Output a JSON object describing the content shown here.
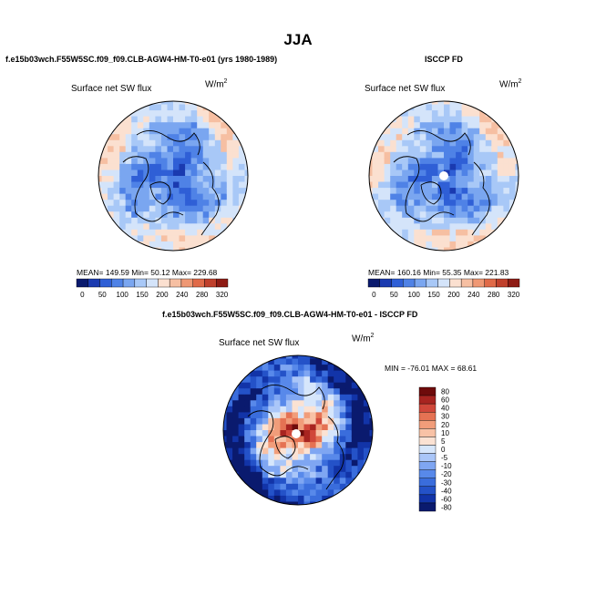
{
  "season_title": "JJA",
  "panels": {
    "model": {
      "header": "f.e15b03wch.F55W5SC.f09_f09.CLB-AGW4-HM-T0-e01 (yrs 1980-1989)",
      "field_label": "Surface net SW flux",
      "units_base": "W/m",
      "units_exp": "2",
      "stats": "MEAN= 149.59   Min=   50.12   Max= 229.68"
    },
    "obs": {
      "header": "ISCCP FD",
      "field_label": "Surface net SW flux",
      "units_base": "W/m",
      "units_exp": "2",
      "stats": "MEAN= 160.16   Min=   55.35   Max= 221.83"
    },
    "diff": {
      "header": "f.e15b03wch.F55W5SC.f09_f09.CLB-AGW4-HM-T0-e01 - ISCCP FD",
      "field_label": "Surface net SW flux",
      "units_base": "W/m",
      "units_exp": "2",
      "stats": "MIN = -76.01  MAX =   68.61"
    }
  },
  "colors": {
    "abs_scale": [
      "#0a1a6e",
      "#1a3ab0",
      "#2f5fd6",
      "#4f82e6",
      "#7aa6f0",
      "#a8c8f7",
      "#d4e4fa",
      "#fbe0d0",
      "#f6bfa2",
      "#ef9874",
      "#e06a48",
      "#c0402c",
      "#8e1b14"
    ],
    "diff_scale": [
      "#0a1a6e",
      "#1234a8",
      "#2452c8",
      "#3a6ddc",
      "#5889ea",
      "#7fa6f2",
      "#aac6f8",
      "#d6e6fb",
      "#fbe2d3",
      "#f8c2a6",
      "#f19d7a",
      "#e57253",
      "#d0473a",
      "#a82420",
      "#6e0b0b"
    ]
  },
  "chart_data": [
    {
      "type": "heatmap",
      "title": "Surface net SW flux",
      "units": "W/m2",
      "projection": "north polar stereographic",
      "colorbar_levels": [
        0,
        50,
        100,
        150,
        200,
        240,
        280,
        320
      ],
      "stats": {
        "mean": 149.59,
        "min": 50.12,
        "max": 229.68
      }
    },
    {
      "type": "heatmap",
      "title": "Surface net SW flux",
      "units": "W/m2",
      "projection": "north polar stereographic",
      "colorbar_levels": [
        0,
        50,
        100,
        150,
        200,
        240,
        280,
        320
      ],
      "stats": {
        "mean": 160.16,
        "min": 55.35,
        "max": 221.83
      }
    },
    {
      "type": "heatmap",
      "title": "Surface net SW flux",
      "units": "W/m2",
      "projection": "north polar stereographic",
      "colorbar_levels": [
        80,
        60,
        40,
        30,
        20,
        10,
        5,
        0,
        -5,
        -10,
        -20,
        -30,
        -40,
        -60,
        -80
      ],
      "stats": {
        "min": -76.01,
        "max": 68.61
      }
    }
  ]
}
